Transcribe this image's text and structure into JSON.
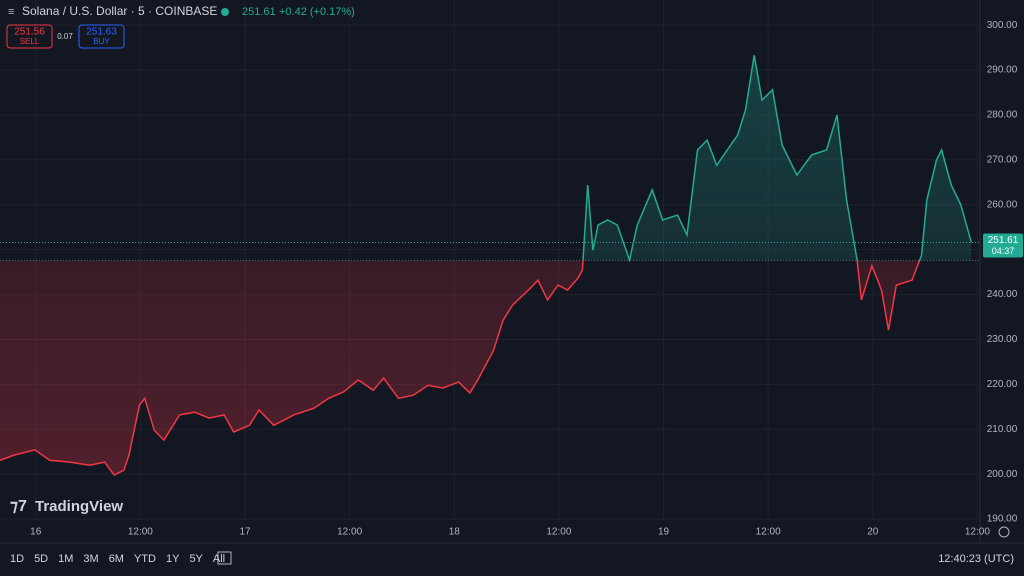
{
  "header": {
    "symbol": "Solana / U.S. Dollar · 5 · COINBASE",
    "change": "+0.42 (+0.17%)",
    "sell_price": "251.56",
    "sell_label": "SELL",
    "spread": "0.07",
    "buy_price": "251.63",
    "buy_label": "BUY"
  },
  "logo": "TradingView",
  "toolbar": {
    "ranges": [
      "1D",
      "5D",
      "1M",
      "3M",
      "6M",
      "YTD",
      "1Y",
      "5Y",
      "All"
    ],
    "clock": "12:40:23 (UTC)"
  },
  "chart_data": {
    "type": "baseline",
    "x": [
      -4.1,
      -2.4,
      -0.1,
      1.6,
      3.9,
      6.2,
      7.9,
      9.0,
      10.1,
      10.7,
      11.9,
      12.5,
      13.6,
      14.7,
      16.5,
      18.2,
      19.9,
      21.6,
      22.7,
      24.5,
      25.6,
      27.3,
      29.6,
      31.9,
      33.6,
      35.3,
      37.0,
      38.7,
      39.9,
      41.6,
      43.3,
      45.0,
      46.7,
      48.5,
      49.8,
      50.7,
      52.5,
      53.6,
      54.7,
      55.3,
      56.5,
      57.6,
      58.7,
      59.9,
      61.0,
      62.2,
      62.7,
      63.3,
      63.9,
      64.5,
      65.6,
      66.7,
      68.1,
      69.0,
      70.7,
      71.9,
      73.6,
      74.7,
      75.9,
      77.0,
      78.1,
      79.3,
      80.5,
      81.4,
      82.4,
      83.3,
      84.5,
      85.6,
      87.3,
      89.0,
      90.7,
      91.9,
      93.0,
      94.2,
      94.7,
      95.9,
      97.0,
      97.8,
      98.7,
      100.5,
      101.6,
      102.2,
      103.3,
      103.9,
      105.0,
      106.1,
      107.3
    ],
    "values": [
      203.1,
      204.3,
      205.4,
      203.1,
      202.7,
      202.0,
      202.7,
      199.8,
      200.9,
      204.3,
      215.4,
      216.9,
      209.8,
      207.6,
      213.2,
      213.8,
      212.5,
      213.2,
      209.4,
      210.9,
      214.3,
      210.9,
      213.2,
      214.7,
      216.9,
      218.3,
      221.0,
      218.7,
      221.4,
      216.9,
      217.6,
      219.8,
      219.2,
      220.5,
      218.1,
      221.0,
      227.6,
      234.3,
      237.7,
      238.8,
      241.0,
      243.2,
      238.8,
      242.1,
      241.0,
      243.7,
      245.5,
      264.4,
      249.9,
      255.5,
      256.6,
      255.5,
      247.7,
      255.5,
      263.3,
      256.6,
      257.7,
      253.3,
      272.2,
      274.4,
      268.8,
      272.2,
      275.5,
      281.1,
      293.3,
      283.3,
      285.6,
      273.3,
      266.6,
      271.1,
      272.2,
      280.0,
      261.0,
      247.7,
      238.8,
      246.4,
      241.0,
      232.1,
      242.1,
      243.2,
      248.8,
      261.0,
      269.9,
      272.2,
      264.4,
      260.0,
      251.61
    ],
    "baseline": 247.6,
    "last_price": 251.61,
    "countdown": "04:37",
    "up_color": "#22ab94",
    "down_color": "#f23645",
    "grid": true,
    "xlim": [
      -4.1,
      108.3
    ],
    "ylim": [
      189.8,
      305.6
    ],
    "xticks": [
      {
        "value": 0,
        "label": "16"
      },
      {
        "value": 12,
        "label": "12:00"
      },
      {
        "value": 24,
        "label": "17"
      },
      {
        "value": 36,
        "label": "12:00"
      },
      {
        "value": 48,
        "label": "18"
      },
      {
        "value": 60,
        "label": "12:00"
      },
      {
        "value": 72,
        "label": "19"
      },
      {
        "value": 84,
        "label": "12:00"
      },
      {
        "value": 96,
        "label": "20"
      },
      {
        "value": 108,
        "label": "12:00"
      }
    ],
    "yticks": [
      {
        "value": 190,
        "label": "190.00"
      },
      {
        "value": 200,
        "label": "200.00"
      },
      {
        "value": 210,
        "label": "210.00"
      },
      {
        "value": 220,
        "label": "220.00"
      },
      {
        "value": 230,
        "label": "230.00"
      },
      {
        "value": 240,
        "label": "240.00"
      },
      {
        "value": 250,
        "label": "250.00"
      },
      {
        "value": 260,
        "label": "260.00"
      },
      {
        "value": 270,
        "label": "270.00"
      },
      {
        "value": 280,
        "label": "280.00"
      },
      {
        "value": 290,
        "label": "290.00"
      },
      {
        "value": 300,
        "label": "300.00"
      }
    ]
  }
}
